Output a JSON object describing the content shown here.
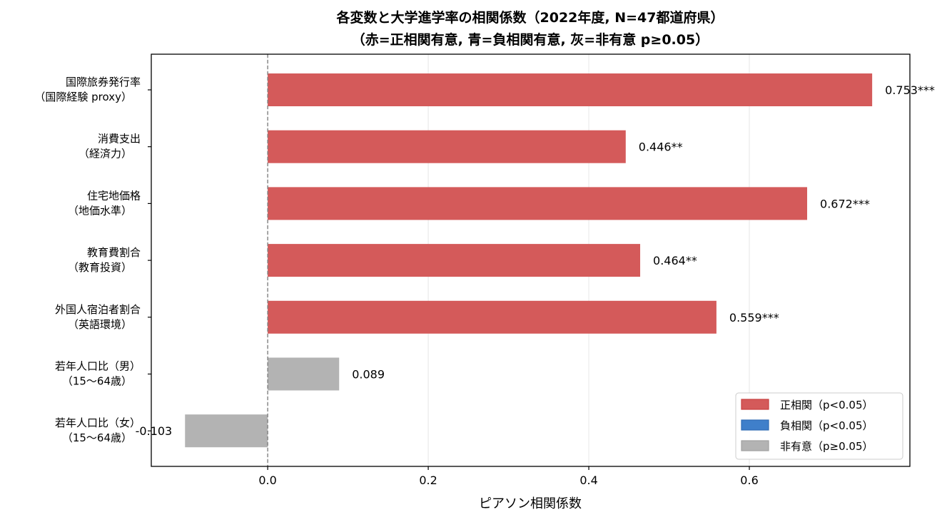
{
  "chart_data": {
    "type": "bar",
    "orientation": "horizontal",
    "title": "各変数と大学進学率の相関係数（2022年度, N=47都道府県）",
    "subtitle": "（赤=正相関有意, 青=負相関有意, 灰=非有意 p≥0.05）",
    "xlabel": "ピアソン相関係数",
    "ylabel": "",
    "xlim": [
      -0.145,
      0.8
    ],
    "xticks": [
      0.0,
      0.2,
      0.4,
      0.6
    ],
    "xtick_labels": [
      "0.0",
      "0.2",
      "0.4",
      "0.6"
    ],
    "grid": "x-axis vertical lines",
    "reference_line": {
      "x": 0.0,
      "style": "dashed"
    },
    "categories": [
      {
        "line1": "国際旅券発行率",
        "line2": "（国際経験 proxy）"
      },
      {
        "line1": "消費支出",
        "line2": "（経済力）"
      },
      {
        "line1": "住宅地価格",
        "line2": "（地価水準）"
      },
      {
        "line1": "教育費割合",
        "line2": "（教育投資）"
      },
      {
        "line1": "外国人宿泊者割合",
        "line2": "（英語環境）"
      },
      {
        "line1": "若年人口比（男）",
        "line2": "（15〜64歳）"
      },
      {
        "line1": "若年人口比（女）",
        "line2": "（15〜64歳）"
      }
    ],
    "values": [
      0.753,
      0.446,
      0.672,
      0.464,
      0.559,
      0.089,
      -0.103
    ],
    "value_labels": [
      "0.753***",
      "0.446**",
      "0.672***",
      "0.464**",
      "0.559***",
      "0.089",
      "-0.103"
    ],
    "bar_status": [
      "positive",
      "positive",
      "positive",
      "positive",
      "positive",
      "nonsig",
      "nonsig"
    ],
    "colors": {
      "positive": "#d45a5a",
      "negative": "#3f7fca",
      "nonsig": "#b3b3b3",
      "positive_edge": "#c84040",
      "negative_edge": "#2f6bb5",
      "nonsig_edge": "#a0a0a0"
    },
    "legend": {
      "placement": "lower-right",
      "entries": [
        {
          "label": "正相関（p<0.05）",
          "status": "positive"
        },
        {
          "label": "負相関（p<0.05）",
          "status": "negative"
        },
        {
          "label": "非有意（p≥0.05）",
          "status": "nonsig"
        }
      ]
    }
  }
}
